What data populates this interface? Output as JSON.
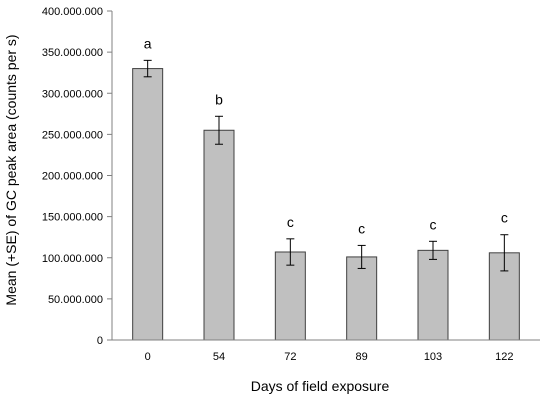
{
  "chart_data": {
    "type": "bar",
    "title": "",
    "xlabel": "Days of field exposure",
    "ylabel": "Mean (+SE) of GC peak area (counts per s)",
    "categories": [
      "0",
      "54",
      "72",
      "89",
      "103",
      "122"
    ],
    "values": [
      330000000,
      255000000,
      107000000,
      101000000,
      109000000,
      106000000
    ],
    "errors": [
      10000000,
      17000000,
      16000000,
      14000000,
      11000000,
      22000000
    ],
    "significance": [
      "a",
      "b",
      "c",
      "c",
      "c",
      "c"
    ],
    "ylim": [
      0,
      400000000
    ],
    "yticks": [
      0,
      50000000,
      100000000,
      150000000,
      200000000,
      250000000,
      300000000,
      350000000,
      400000000
    ],
    "ytick_labels": [
      "0",
      "50.000.000",
      "100.000.000",
      "150.000.000",
      "200.000.000",
      "250.000.000",
      "300.000.000",
      "350.000.000",
      "400.000.000"
    ],
    "grid": false,
    "legend": "none",
    "colors": {
      "bar_fill": "#c0c0c0",
      "bar_stroke": "#404040",
      "axis": "#808080"
    }
  }
}
